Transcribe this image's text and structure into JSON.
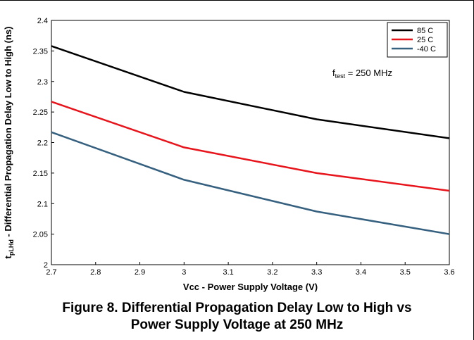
{
  "chart_data": {
    "type": "line",
    "title": "",
    "xlabel": "Vcc - Power Supply Voltage  (V)",
    "ylabel_main": "t",
    "ylabel_sub": "pLHd",
    "ylabel_rest": " - Differential Propagation Delay Low to High (ns)",
    "xlim": [
      2.7,
      3.6
    ],
    "ylim": [
      2,
      2.4
    ],
    "x_ticks": [
      "2.7",
      "2.8",
      "2.9",
      "3",
      "3.1",
      "3.2",
      "3.3",
      "3.4",
      "3.5",
      "3.6"
    ],
    "y_ticks": [
      "2",
      "2.05",
      "2.1",
      "2.15",
      "2.2",
      "2.25",
      "2.3",
      "2.35",
      "2.4"
    ],
    "grid": false,
    "legend_position": "top-right",
    "series": [
      {
        "name": "85 C",
        "color": "#000000",
        "x": [
          2.7,
          3.0,
          3.3,
          3.6
        ],
        "values": [
          2.358,
          2.283,
          2.238,
          2.207
        ]
      },
      {
        "name": "25 C",
        "color": "#e8141b",
        "x": [
          2.7,
          3.0,
          3.3,
          3.6
        ],
        "values": [
          2.267,
          2.192,
          2.15,
          2.121
        ]
      },
      {
        "name": "-40 C",
        "color": "#35607f",
        "x": [
          2.7,
          3.0,
          3.3,
          3.6
        ],
        "values": [
          2.217,
          2.139,
          2.087,
          2.05
        ]
      }
    ],
    "annotation": {
      "main": "f",
      "sub": "test",
      "rest": " = 250 MHz"
    }
  },
  "caption": {
    "line1": "Figure 8. Differential Propagation Delay Low to High vs",
    "line2": "Power Supply Voltage at 250 MHz"
  }
}
